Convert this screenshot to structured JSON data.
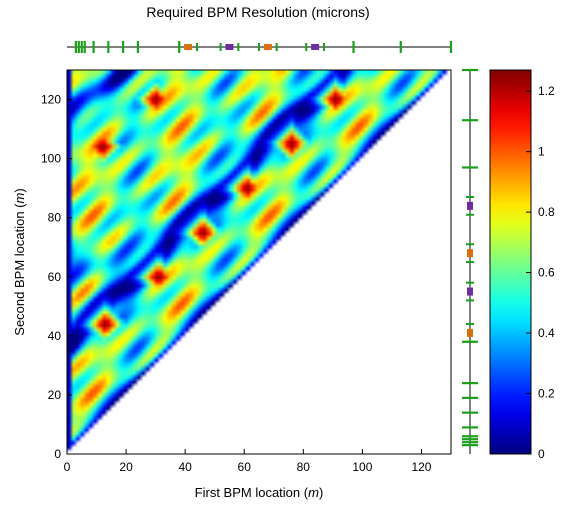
{
  "chart_data": {
    "type": "heatmap",
    "title": "Required BPM Resolution (microns)",
    "xlabel": "First BPM location",
    "ylabel": "Second BPM location",
    "unit": "m",
    "xlim": [
      0,
      130
    ],
    "ylim": [
      0,
      130
    ],
    "x_ticks": [
      0,
      20,
      40,
      60,
      80,
      100,
      120
    ],
    "y_ticks": [
      0,
      20,
      40,
      60,
      80,
      100,
      120
    ],
    "colorbar": {
      "range": [
        0,
        1.27
      ],
      "ticks": [
        0,
        0.2,
        0.4,
        0.6,
        0.8,
        1,
        1.2
      ],
      "colormap": "jet",
      "colors": [
        "#0000ff",
        "#00ffff",
        "#00ff00",
        "#ffff00",
        "#ff8000",
        "#ff0000"
      ]
    },
    "region": "lower-triangle (second BPM location > first BPM location)",
    "hot_spots": [
      {
        "x": 30,
        "y": 120,
        "value": 1.25
      },
      {
        "x": 91,
        "y": 120,
        "value": 1.25
      },
      {
        "x": 12,
        "y": 104,
        "value": 1.25
      },
      {
        "x": 76,
        "y": 105,
        "value": 1.25
      },
      {
        "x": 61,
        "y": 90,
        "value": 1.25
      },
      {
        "x": 46,
        "y": 75,
        "value": 1.25
      },
      {
        "x": 31,
        "y": 60,
        "value": 1.25
      },
      {
        "x": 13,
        "y": 44,
        "value": 1.25
      }
    ],
    "beamline_elements": {
      "magnets": [
        3,
        4,
        5,
        6,
        9,
        14,
        19,
        24,
        38,
        97,
        113,
        130
      ],
      "quadrupoles_orange": [
        41,
        68
      ],
      "quadrupoles_purple": [
        55,
        84
      ],
      "colors": {
        "magnet": "#1aa01a",
        "orange": "#d9700f",
        "purple": "#6e2ea0"
      }
    }
  }
}
